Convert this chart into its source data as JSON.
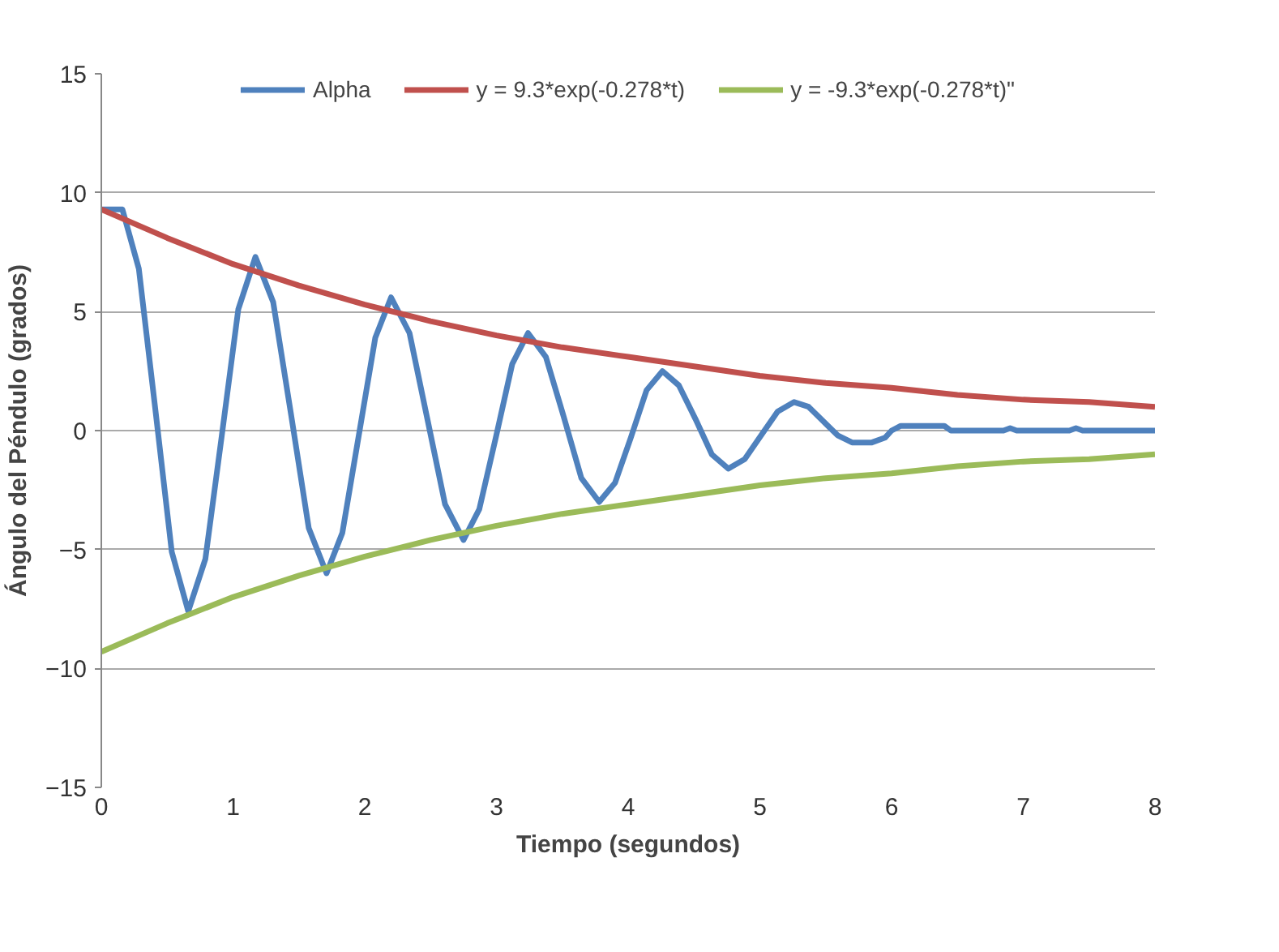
{
  "chart_data": {
    "type": "line",
    "xlabel": "Tiempo (segundos)",
    "ylabel": "Ángulo del Péndulo (grados)",
    "xlim": [
      0,
      8
    ],
    "xticks": [
      0,
      1,
      2,
      3,
      4,
      5,
      6,
      7,
      8
    ],
    "ylim": [
      -15,
      15
    ],
    "yticks": [
      -15,
      -10,
      -5,
      0,
      5,
      10,
      15
    ],
    "grid": "y",
    "legend": "top",
    "marker": "none",
    "line_style": "solid",
    "series": [
      {
        "name": "Alpha",
        "color": "#4f81bd",
        "x": [
          0,
          0.16,
          0.285,
          0.41,
          0.535,
          0.66,
          0.79,
          0.915,
          1.04,
          1.17,
          1.305,
          1.44,
          1.575,
          1.71,
          1.83,
          1.955,
          2.08,
          2.2,
          2.34,
          2.475,
          2.61,
          2.75,
          2.87,
          2.995,
          3.12,
          3.24,
          3.375,
          3.51,
          3.645,
          3.78,
          3.9,
          4.02,
          4.14,
          4.26,
          4.385,
          4.51,
          4.635,
          4.76,
          4.885,
          5.01,
          5.135,
          5.26,
          5.37,
          5.48,
          5.59,
          5.7,
          5.85,
          5.95,
          6.0,
          6.07,
          6.4,
          6.45,
          6.85,
          6.9,
          6.95,
          7.35,
          7.4,
          7.45,
          8
        ],
        "values": [
          9.3,
          9.3,
          6.8,
          0.9,
          -5.1,
          -7.6,
          -5.4,
          -0.2,
          5.1,
          7.3,
          5.4,
          0.7,
          -4.1,
          -6.0,
          -4.3,
          -0.2,
          3.9,
          5.6,
          4.1,
          0.5,
          -3.1,
          -4.6,
          -3.3,
          -0.3,
          2.8,
          4.1,
          3.1,
          0.6,
          -2.0,
          -3.0,
          -2.2,
          -0.3,
          1.7,
          2.5,
          1.9,
          0.5,
          -1.0,
          -1.6,
          -1.2,
          -0.2,
          0.8,
          1.2,
          1.0,
          0.4,
          -0.2,
          -0.5,
          -0.5,
          -0.3,
          0,
          0.2,
          0.2,
          0,
          0,
          0.1,
          0,
          0,
          0.1,
          0,
          0
        ]
      },
      {
        "name": "y = 9.3*exp(-0.278*t)",
        "color": "#c0504d",
        "x": [
          0,
          0.5,
          1,
          1.5,
          2,
          2.5,
          3,
          3.5,
          4,
          4.5,
          5,
          5.5,
          6,
          6.5,
          7,
          7.5,
          8
        ],
        "values": [
          9.3,
          8.1,
          7.0,
          6.1,
          5.3,
          4.6,
          4.0,
          3.5,
          3.1,
          2.7,
          2.3,
          2.0,
          1.8,
          1.5,
          1.3,
          1.2,
          1.0
        ]
      },
      {
        "name": "y = -9.3*exp(-0.278*t)\"",
        "color": "#9bbb59",
        "x": [
          0,
          0.5,
          1,
          1.5,
          2,
          2.5,
          3,
          3.5,
          4,
          4.5,
          5,
          5.5,
          6,
          6.5,
          7,
          7.5,
          8
        ],
        "values": [
          -9.3,
          -8.1,
          -7.0,
          -6.1,
          -5.3,
          -4.6,
          -4.0,
          -3.5,
          -3.1,
          -2.7,
          -2.3,
          -2.0,
          -1.8,
          -1.5,
          -1.3,
          -1.2,
          -1.0
        ]
      }
    ]
  }
}
